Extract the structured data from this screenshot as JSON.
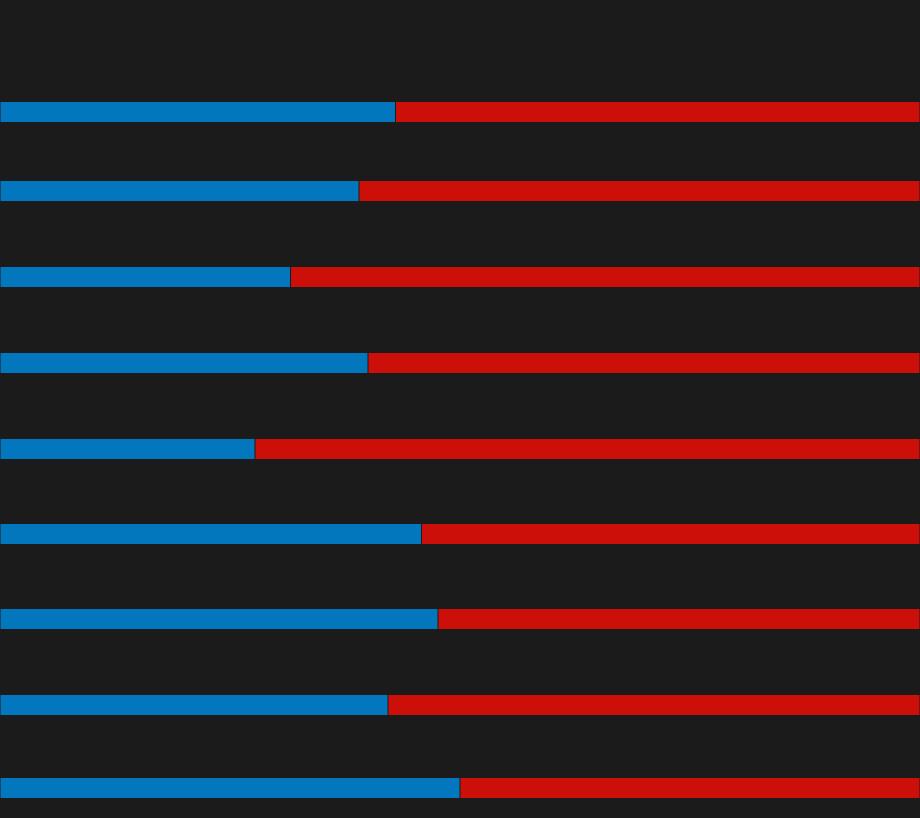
{
  "colors": {
    "background": "#1b1b1b",
    "blue": "#0277bd",
    "red": "#cc0f09"
  },
  "chart_data": {
    "type": "bar",
    "stacked": true,
    "orientation": "horizontal",
    "normalized": true,
    "title": "",
    "xlabel": "",
    "ylabel": "",
    "xlim": [
      0,
      100
    ],
    "legend": "none",
    "grid": false,
    "series": [
      {
        "color": "#0277bd",
        "values": [
          43,
          39,
          31.6,
          40,
          27.7,
          45.8,
          47.6,
          42.2,
          50
        ]
      },
      {
        "color": "#cc0f09",
        "values": [
          57,
          61,
          68.4,
          60,
          72.3,
          54.2,
          52.4,
          57.8,
          50
        ]
      }
    ]
  }
}
